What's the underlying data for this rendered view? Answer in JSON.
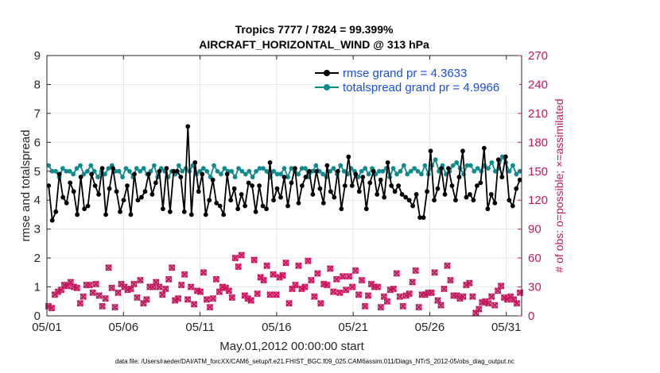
{
  "chart_data": {
    "type": "line",
    "title": "Tropics 7777 / 7824 = 99.399%",
    "subtitle": "AIRCRAFT_HORIZONTAL_WIND @ 313 hPa",
    "xlabel": "May.01,2012 00:00:00 start",
    "ylabel": "rmse and totalspread",
    "ylabel_right": "# of obs: o=possible; ×=assimilated",
    "footer": "data file: /Users/raeder/DAI/ATM_forcXX/CAM6_setup/f.e21.FHIST_BGC.f09_025.CAM6assim.011/Diags_NTrS_2012-05/obs_diag_output.nc",
    "x_range": [
      0,
      31
    ],
    "ylim": [
      0,
      9
    ],
    "ylim_right": [
      0,
      270
    ],
    "y_ticks": [
      "0",
      "1",
      "2",
      "3",
      "4",
      "5",
      "6",
      "7",
      "8",
      "9"
    ],
    "y_right_ticks": [
      "0",
      "30",
      "60",
      "90",
      "120",
      "150",
      "180",
      "210",
      "240",
      "270"
    ],
    "x_ticks": [
      {
        "day": 0,
        "label": "05/01"
      },
      {
        "day": 5,
        "label": "05/06"
      },
      {
        "day": 10,
        "label": "05/11"
      },
      {
        "day": 15,
        "label": "05/16"
      },
      {
        "day": 20,
        "label": "05/21"
      },
      {
        "day": 25,
        "label": "05/26"
      },
      {
        "day": 30,
        "label": "05/31"
      }
    ],
    "colors": {
      "rmse": "#000000",
      "spread": "#0f8b8d",
      "obs": "#c8175f",
      "legend_text": "#1a4fe0"
    },
    "series": [
      {
        "name": "rmse grand pr = 4.3633",
        "values": [
          4.5,
          3.3,
          3.6,
          4.9,
          4.1,
          3.9,
          4.6,
          4.3,
          3.5,
          4.8,
          3.7,
          3.8,
          4.9,
          4.5,
          4.2,
          5.1,
          3.5,
          4.4,
          5.1,
          4.3,
          3.6,
          4.0,
          4.5,
          3.5,
          4.9,
          4.0,
          4.1,
          4.3,
          4.9,
          4.2,
          4.6,
          5.0,
          3.7,
          5.1,
          3.6,
          5.0,
          5.0,
          4.8,
          3.6,
          6.55,
          3.5,
          5.3,
          4.3,
          4.9,
          3.5,
          4.0,
          4.7,
          3.9,
          3.8,
          3.5,
          4.9,
          4.0,
          4.4,
          3.7,
          4.2,
          3.8,
          4.6,
          4.5,
          3.6,
          4.5,
          3.8,
          3.7,
          5.3,
          4.0,
          4.4,
          4.1,
          4.8,
          3.8,
          4.6,
          5.1,
          3.9,
          4.5,
          4.8,
          5.0,
          4.2,
          5.0,
          4.4,
          3.9,
          5.2,
          4.3,
          4.1,
          5.0,
          3.7,
          4.5,
          5.5,
          4.5,
          4.9,
          4.3,
          4.8,
          3.7,
          4.6,
          5.0,
          4.2,
          4.7,
          4.1,
          5.3,
          4.5,
          4.3,
          4.5,
          4.2,
          4.1,
          4.0,
          3.8,
          4.2,
          3.4,
          3.4,
          4.3,
          5.7,
          4.0,
          4.4,
          5.1,
          4.2,
          5.1,
          4.5,
          4.0,
          4.8,
          5.7,
          4.1,
          4.2,
          4.0,
          4.5,
          4.6,
          5.8,
          3.7,
          4.2,
          3.9,
          5.4,
          4.8,
          5.5,
          4.0,
          3.8,
          4.4,
          4.7
        ],
        "color": "#000000"
      },
      {
        "name": "totalspread grand pr = 4.9966",
        "values": [
          5.2,
          5.0,
          5.0,
          4.8,
          5.1,
          5.0,
          5.0,
          4.9,
          5.1,
          5.2,
          4.9,
          5.0,
          5.2,
          5.0,
          4.8,
          5.0,
          4.9,
          5.1,
          5.2,
          5.0,
          5.0,
          4.8,
          5.1,
          5.0,
          4.8,
          5.1,
          5.0,
          5.1,
          4.9,
          5.0,
          5.2,
          4.8,
          5.1,
          5.0,
          4.8,
          5.0,
          4.9,
          5.2,
          5.0,
          5.1,
          5.0,
          5.2,
          4.9,
          5.0,
          5.1,
          5.0,
          4.8,
          5.2,
          5.0,
          4.9,
          5.1,
          5.0,
          5.0,
          4.8,
          5.1,
          5.0,
          4.9,
          5.0,
          4.8,
          5.0,
          5.1,
          5.1,
          5.0,
          4.8,
          5.0,
          4.9,
          4.9,
          5.1,
          4.8,
          5.1,
          5.0,
          4.9,
          5.1,
          5.1,
          4.8,
          5.0,
          5.2,
          5.0,
          4.9,
          4.8,
          5.0,
          5.1,
          4.9,
          5.2,
          5.0,
          4.9,
          5.1,
          5.0,
          4.8,
          5.0,
          5.1,
          4.9,
          5.1,
          4.9,
          5.0,
          5.0,
          5.1,
          4.8,
          5.1,
          4.9,
          5.0,
          5.2,
          4.9,
          5.0,
          5.1,
          5.0,
          4.9,
          5.2,
          4.9,
          5.2,
          5.4,
          5.0,
          5.2,
          4.9,
          5.0,
          5.2,
          5.3,
          5.1,
          4.9,
          5.2,
          5.2,
          5.0,
          5.1,
          5.0,
          5.2,
          5.1,
          5.3,
          5.0,
          5.1,
          5.5,
          5.3,
          5.0,
          5.2,
          4.9,
          5.0
        ],
        "color": "#0f8b8d"
      }
    ],
    "obs_counts": [
      10,
      8,
      22,
      25,
      27,
      32,
      31,
      35,
      30,
      29,
      13,
      20,
      32,
      32,
      24,
      33,
      21,
      10,
      18,
      50,
      29,
      9,
      24,
      33,
      30,
      27,
      28,
      33,
      19,
      37,
      13,
      17,
      30,
      30,
      35,
      30,
      22,
      28,
      38,
      50,
      16,
      18,
      32,
      43,
      17,
      30,
      12,
      26,
      25,
      45,
      17,
      9,
      18,
      38,
      25,
      30,
      29,
      26,
      19,
      60,
      51,
      63,
      21,
      18,
      16,
      58,
      23,
      40,
      37,
      52,
      22,
      43,
      22,
      40,
      42,
      55,
      13,
      28,
      32,
      52,
      28,
      30,
      57,
      37,
      20,
      44,
      13,
      33,
      32,
      49,
      25,
      38,
      24,
      41,
      27,
      41,
      30,
      47,
      22,
      37,
      10,
      21,
      33,
      30,
      30,
      9,
      20,
      15,
      27,
      28,
      44,
      20,
      10,
      21,
      23,
      35,
      47,
      9,
      22,
      22,
      24,
      24,
      45,
      16,
      11,
      28,
      52,
      37,
      21,
      21,
      18,
      20,
      32,
      34,
      20,
      3,
      7,
      14,
      15,
      13,
      20,
      11,
      26,
      31,
      19,
      17,
      20,
      17,
      13,
      24
    ]
  }
}
